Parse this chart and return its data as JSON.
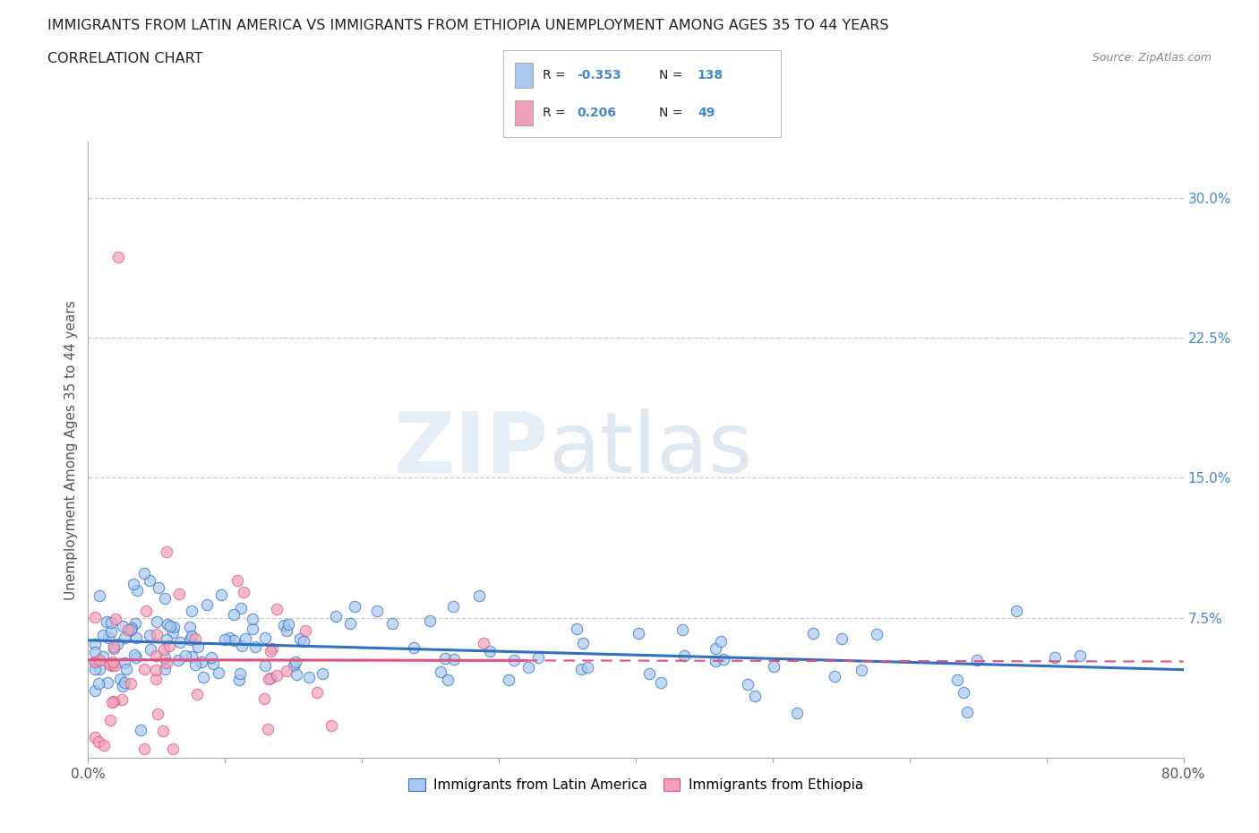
{
  "title": "IMMIGRANTS FROM LATIN AMERICA VS IMMIGRANTS FROM ETHIOPIA UNEMPLOYMENT AMONG AGES 35 TO 44 YEARS",
  "subtitle": "CORRELATION CHART",
  "source": "Source: ZipAtlas.com",
  "ylabel": "Unemployment Among Ages 35 to 44 years",
  "xlim": [
    0.0,
    0.8
  ],
  "ylim": [
    0.0,
    0.33
  ],
  "yticks_right": [
    0.075,
    0.15,
    0.225,
    0.3
  ],
  "ytick_right_labels": [
    "7.5%",
    "15.0%",
    "22.5%",
    "30.0%"
  ],
  "grid_color": "#cccccc",
  "blue_color": "#a8c8f0",
  "pink_color": "#f0a0b8",
  "blue_line_color": "#3070c0",
  "pink_line_color": "#e05080",
  "R_blue": -0.353,
  "N_blue": 138,
  "R_pink": 0.206,
  "N_pink": 49,
  "watermark_zip": "ZIP",
  "watermark_atlas": "atlas",
  "legend_label_blue": "Immigrants from Latin America",
  "legend_label_pink": "Immigrants from Ethiopia"
}
